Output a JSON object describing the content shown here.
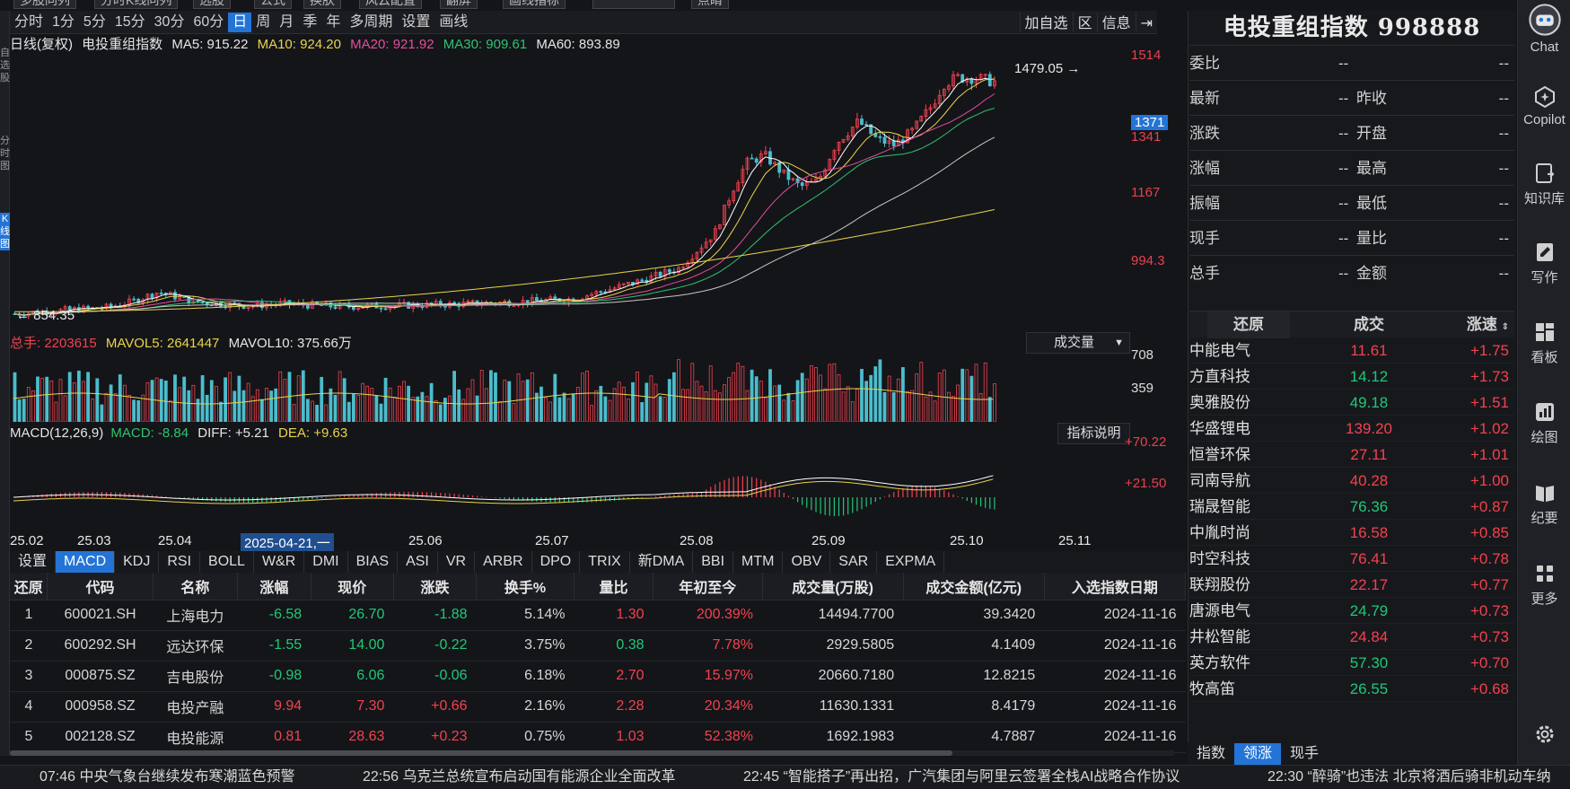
{
  "top_buttons": [
    "多股同列",
    "分时K线同列",
    "选股",
    "公式",
    "换肤",
    "风云配置",
    "翻屏",
    "画线指标",
    "",
    "点睛"
  ],
  "left_strip": [
    "自选股",
    "分时图",
    "K线图"
  ],
  "periods": [
    "分时",
    "1分",
    "5分",
    "15分",
    "30分",
    "60分",
    "日",
    "周",
    "月",
    "季",
    "年",
    "多周期",
    "设置",
    "画线"
  ],
  "active_period": "日",
  "right_buttons": [
    "加自选",
    "区",
    "信息",
    "⇥"
  ],
  "ma_line": {
    "prefix": "日线(复权)",
    "name": "电投重组指数",
    "ma5": "MA5: 915.22",
    "ma10": "MA10: 924.20",
    "ma20": "MA20: 921.92",
    "ma30": "MA30: 909.61",
    "ma60": "MA60: 893.89"
  },
  "price_axis": [
    "1514",
    "1371",
    "1341",
    "1167",
    "994.3"
  ],
  "current_price_tag": "1371",
  "max_label": "1479.05",
  "min_label": "854.35",
  "vol_info": {
    "total": "总手: 2203615",
    "mavol5": "MAVOL5: 2641447",
    "mavol10": "MAVOL10: 375.66万"
  },
  "vol_select": "成交量",
  "vol_axis": [
    "708",
    "359"
  ],
  "macd_info": {
    "name": "MACD(12,26,9)",
    "macd": "MACD: -8.84",
    "diff": "DIFF: +5.21",
    "dea": "DEA: +9.63"
  },
  "macd_help": "指标说明",
  "macd_axis": [
    "+70.22",
    "+21.50"
  ],
  "dates": [
    "25.02",
    "25.03",
    "25.04",
    "2025-04-21,一",
    "25.06",
    "25.07",
    "25.08",
    "25.09",
    "25.10",
    "25.11"
  ],
  "indicator_tabs": [
    "设置",
    "MACD",
    "KDJ",
    "RSI",
    "BOLL",
    "W&R",
    "DMI",
    "BIAS",
    "ASI",
    "VR",
    "ARBR",
    "DPO",
    "TRIX",
    "新DMA",
    "BBI",
    "MTM",
    "OBV",
    "SAR",
    "EXPMA"
  ],
  "active_indicator": "MACD",
  "table": {
    "headers": [
      "还原",
      "代码",
      "名称",
      "涨幅",
      "现价",
      "涨跌",
      "换手%",
      "量比",
      "年初至今",
      "成交量(万股)",
      "成交金额(亿元)",
      "入选指数日期"
    ],
    "rows": [
      [
        "1",
        "600021.SH",
        "上海电力",
        "-6.58",
        "26.70",
        "-1.88",
        "5.14%",
        "1.30",
        "200.39%",
        "14494.7700",
        "39.3420",
        "2024-11-16"
      ],
      [
        "2",
        "600292.SH",
        "远达环保",
        "-1.55",
        "14.00",
        "-0.22",
        "3.75%",
        "0.38",
        "7.78%",
        "2929.5805",
        "4.1409",
        "2024-11-16"
      ],
      [
        "3",
        "000875.SZ",
        "吉电股份",
        "-0.98",
        "6.06",
        "-0.06",
        "6.18%",
        "2.70",
        "15.97%",
        "20660.7180",
        "12.8215",
        "2024-11-16"
      ],
      [
        "4",
        "000958.SZ",
        "电投产融",
        "9.94",
        "7.30",
        "+0.66",
        "2.16%",
        "2.28",
        "20.34%",
        "11630.1331",
        "8.4179",
        "2024-11-16"
      ],
      [
        "5",
        "002128.SZ",
        "电投能源",
        "0.81",
        "28.63",
        "+0.23",
        "0.75%",
        "1.03",
        "52.38%",
        "1692.1983",
        "4.7887",
        "2024-11-16"
      ]
    ]
  },
  "right_panel": {
    "title": "电投重组指数 998888",
    "quotes": [
      {
        "k1": "委比",
        "v1": "--",
        "k2": "",
        "v2": "--"
      },
      {
        "k1": "最新",
        "v1": "--",
        "k2": "昨收",
        "v2": "--"
      },
      {
        "k1": "涨跌",
        "v1": "--",
        "k2": "开盘",
        "v2": "--"
      },
      {
        "k1": "涨幅",
        "v1": "--",
        "k2": "最高",
        "v2": "--"
      },
      {
        "k1": "振幅",
        "v1": "--",
        "k2": "最低",
        "v2": "--"
      },
      {
        "k1": "现手",
        "v1": "--",
        "k2": "量比",
        "v2": "--"
      },
      {
        "k1": "总手",
        "v1": "--",
        "k2": "金额",
        "v2": "--"
      }
    ],
    "leaders_head": [
      "还原",
      "成交",
      "涨速"
    ],
    "leaders": [
      {
        "name": "中能电气",
        "price": "11.61",
        "speed": "+1.75",
        "color": "red"
      },
      {
        "name": "方直科技",
        "price": "14.12",
        "speed": "+1.73",
        "color": "green"
      },
      {
        "name": "奥雅股份",
        "price": "49.18",
        "speed": "+1.51",
        "color": "green"
      },
      {
        "name": "华盛锂电",
        "price": "139.20",
        "speed": "+1.02",
        "color": "red"
      },
      {
        "name": "恒誉环保",
        "price": "27.11",
        "speed": "+1.01",
        "color": "red"
      },
      {
        "name": "司南导航",
        "price": "40.28",
        "speed": "+1.00",
        "color": "red"
      },
      {
        "name": "瑞晟智能",
        "price": "76.36",
        "speed": "+0.87",
        "color": "green"
      },
      {
        "name": "中胤时尚",
        "price": "16.58",
        "speed": "+0.85",
        "color": "red"
      },
      {
        "name": "时空科技",
        "price": "76.41",
        "speed": "+0.78",
        "color": "red"
      },
      {
        "name": "联翔股份",
        "price": "22.17",
        "speed": "+0.77",
        "color": "red"
      },
      {
        "name": "唐源电气",
        "price": "24.79",
        "speed": "+0.73",
        "color": "green"
      },
      {
        "name": "井松智能",
        "price": "24.84",
        "speed": "+0.73",
        "color": "red"
      },
      {
        "name": "英方软件",
        "price": "57.30",
        "speed": "+0.70",
        "color": "green"
      },
      {
        "name": "牧高笛",
        "price": "26.55",
        "speed": "+0.68",
        "color": "green"
      }
    ],
    "tabs": [
      "指数",
      "领涨",
      "现手"
    ],
    "active_tab": "领涨"
  },
  "sidebar": [
    {
      "label": "Chat",
      "icon": "chat-bot-icon"
    },
    {
      "label": "Copilot",
      "icon": "copilot-icon"
    },
    {
      "label": "知识库",
      "icon": "knowledge-icon"
    },
    {
      "label": "写作",
      "icon": "write-icon"
    },
    {
      "label": "看板",
      "icon": "dashboard-icon"
    },
    {
      "label": "绘图",
      "icon": "draw-icon"
    },
    {
      "label": "纪要",
      "icon": "notes-icon"
    },
    {
      "label": "更多",
      "icon": "more-icon"
    },
    {
      "label": "",
      "icon": "settings-icon"
    }
  ],
  "ticker": [
    "07:46 中央气象台继续发布寒潮蓝色预警",
    "22:56 乌克兰总统宣布启动国有能源企业全面改革",
    "22:45 “智能搭子”再出招，广汽集团与阿里云签署全栈AI战略合作协议",
    "22:30 “醉骑”也违法 北京将酒后骑非机动车纳"
  ],
  "colors": {
    "up": "#f2424e",
    "down": "#4bbdcc",
    "accent": "#2374d6",
    "ma5": "#ffffff",
    "ma10": "#e9d34b",
    "ma20": "#e34d9c",
    "ma30": "#2ec270",
    "ma60": "#c8c8c8"
  }
}
